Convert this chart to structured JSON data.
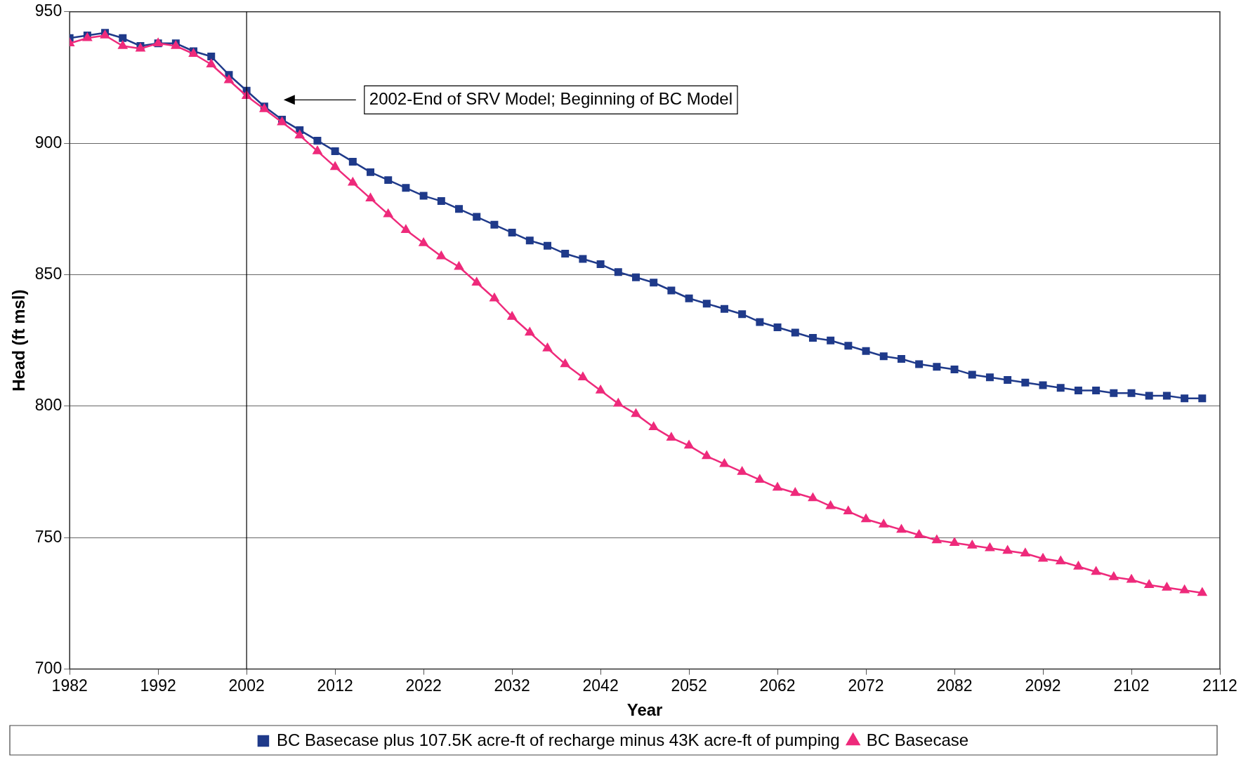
{
  "chart_data": {
    "type": "line",
    "xlabel": "Year",
    "ylabel": "Head (ft msl)",
    "x": [
      1982,
      1984,
      1986,
      1988,
      1990,
      1992,
      1994,
      1996,
      1998,
      2000,
      2002,
      2004,
      2006,
      2008,
      2010,
      2012,
      2014,
      2016,
      2018,
      2020,
      2022,
      2024,
      2026,
      2028,
      2030,
      2032,
      2034,
      2036,
      2038,
      2040,
      2042,
      2044,
      2046,
      2048,
      2050,
      2052,
      2054,
      2056,
      2058,
      2060,
      2062,
      2064,
      2066,
      2068,
      2070,
      2072,
      2074,
      2076,
      2078,
      2080,
      2082,
      2084,
      2086,
      2088,
      2090,
      2092,
      2094,
      2096,
      2098,
      2100,
      2102,
      2104,
      2106,
      2108,
      2110
    ],
    "series": [
      {
        "name": "BC Basecase plus 107.5K acre-ft of recharge minus 43K acre-ft of pumping",
        "color": "#1f3a8a",
        "marker": "square",
        "values": [
          940,
          941,
          942,
          940,
          937,
          938,
          938,
          935,
          933,
          926,
          920,
          914,
          909,
          905,
          901,
          897,
          893,
          889,
          886,
          883,
          880,
          878,
          875,
          872,
          869,
          866,
          863,
          861,
          858,
          856,
          854,
          851,
          849,
          847,
          844,
          841,
          839,
          837,
          835,
          832,
          830,
          828,
          826,
          825,
          823,
          821,
          819,
          818,
          816,
          815,
          814,
          812,
          811,
          810,
          809,
          808,
          807,
          806,
          806,
          805,
          805,
          804,
          804,
          803,
          803
        ]
      },
      {
        "name": "BC Basecase",
        "color": "#ee2a7b",
        "marker": "triangle",
        "values": [
          938,
          940,
          941,
          937,
          936,
          938,
          937,
          934,
          930,
          924,
          918,
          913,
          908,
          903,
          897,
          891,
          885,
          879,
          873,
          867,
          862,
          857,
          853,
          847,
          841,
          834,
          828,
          822,
          816,
          811,
          806,
          801,
          797,
          792,
          788,
          785,
          781,
          778,
          775,
          772,
          769,
          767,
          765,
          762,
          760,
          757,
          755,
          753,
          751,
          749,
          748,
          747,
          746,
          745,
          744,
          742,
          741,
          739,
          737,
          735,
          734,
          732,
          731,
          730,
          729
        ]
      }
    ],
    "xlim": [
      1982,
      2112
    ],
    "xticks": [
      1982,
      1992,
      2002,
      2012,
      2022,
      2032,
      2042,
      2052,
      2062,
      2072,
      2082,
      2092,
      2102,
      2112
    ],
    "ylim": [
      700,
      950
    ],
    "yticks": [
      700,
      750,
      800,
      850,
      900,
      950
    ],
    "grid": "y",
    "legend": "bottom",
    "line_style": "solid",
    "ref_lines": [
      {
        "axis": "x",
        "value": 2002,
        "color": "#000000"
      }
    ],
    "annotations": [
      "2002-End of SRV Model; Beginning of BC Model"
    ]
  }
}
